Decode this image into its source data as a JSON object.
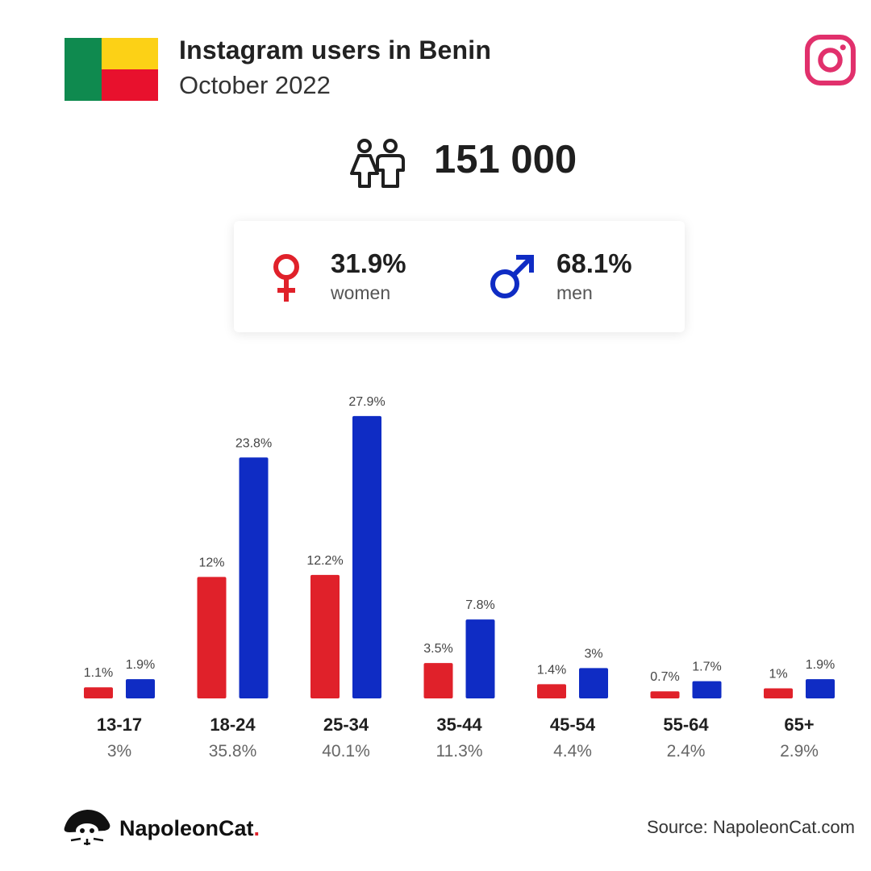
{
  "header": {
    "title": "Instagram users in Benin",
    "subtitle": "October 2022"
  },
  "flag": {
    "country": "Benin",
    "colors": [
      "#0f8a4f",
      "#fcd116",
      "#e8112d"
    ]
  },
  "icons": {
    "brand": "instagram-icon",
    "users": "people-icon",
    "female": "female-symbol-icon",
    "male": "male-symbol-icon"
  },
  "total_users": "151 000",
  "gender": {
    "women": {
      "percent": "31.9%",
      "label": "women",
      "color": "#e0212a"
    },
    "men": {
      "percent": "68.1%",
      "label": "men",
      "color": "#0f2cc4"
    }
  },
  "chart_data": {
    "type": "bar",
    "categories": [
      "13-17",
      "18-24",
      "25-34",
      "35-44",
      "45-54",
      "55-64",
      "65+"
    ],
    "category_totals": [
      "3%",
      "35.8%",
      "40.1%",
      "11.3%",
      "4.4%",
      "2.4%",
      "2.9%"
    ],
    "series": [
      {
        "name": "women",
        "color": "#e0212a",
        "values": [
          1.1,
          12,
          12.2,
          3.5,
          1.4,
          0.7,
          1
        ],
        "labels": [
          "1.1%",
          "12%",
          "12.2%",
          "3.5%",
          "1.4%",
          "0.7%",
          "1%"
        ]
      },
      {
        "name": "men",
        "color": "#0f2cc4",
        "values": [
          1.9,
          23.8,
          27.9,
          7.8,
          3,
          1.7,
          1.9
        ],
        "labels": [
          "1.9%",
          "23.8%",
          "27.9%",
          "7.8%",
          "3%",
          "1.7%",
          "1.9%"
        ]
      }
    ],
    "title": "",
    "xlabel": "",
    "ylabel": "",
    "grid": false,
    "legend": "none"
  },
  "footer": {
    "brand_name": "NapoleonCat",
    "brand_dot": ".",
    "source": "Source: NapoleonCat.com"
  }
}
